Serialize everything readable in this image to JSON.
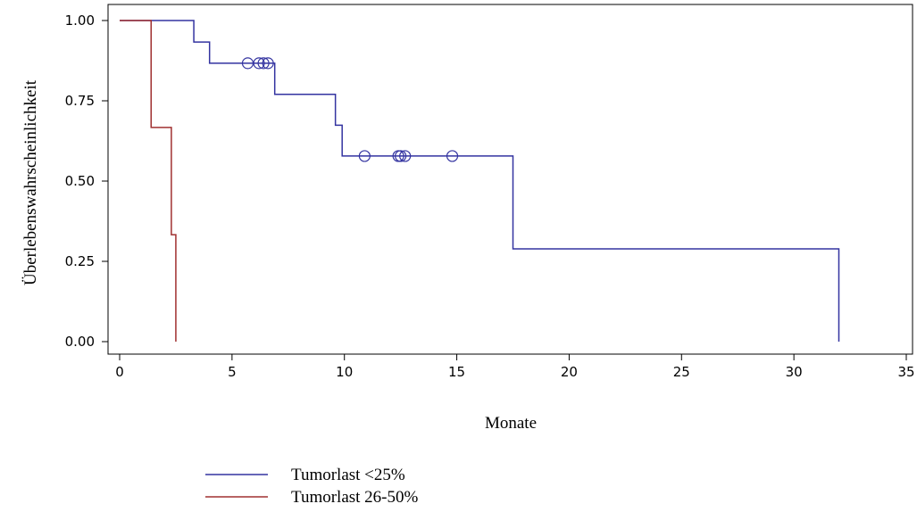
{
  "chart_data": {
    "type": "line",
    "subtype": "kaplan-meier step",
    "title": "",
    "xlabel": "Monate",
    "ylabel": "Überlebenswahrscheinlichkeit",
    "xlim": [
      0,
      35
    ],
    "ylim": [
      0,
      1
    ],
    "x_ticks": [
      "0",
      "5",
      "10",
      "15",
      "20",
      "25",
      "30",
      "35"
    ],
    "y_ticks": [
      "0.00",
      "0.25",
      "0.50",
      "0.75",
      "1.00"
    ],
    "grid": false,
    "legend_position": "bottom-left",
    "series": [
      {
        "name": "Tumorlast <25%",
        "color": "#3333a0",
        "steps": [
          [
            0,
            1.0
          ],
          [
            3.3,
            0.933
          ],
          [
            4.0,
            0.867
          ],
          [
            6.9,
            0.77
          ],
          [
            9.6,
            0.674
          ],
          [
            9.9,
            0.578
          ],
          [
            17.5,
            0.289
          ],
          [
            32.0,
            0.0
          ]
        ],
        "censored_x": [
          5.7,
          6.2,
          6.4,
          6.6,
          10.9,
          12.4,
          12.5,
          12.7,
          14.8
        ],
        "censored_y": [
          0.867,
          0.867,
          0.867,
          0.867,
          0.578,
          0.578,
          0.578,
          0.578,
          0.578
        ]
      },
      {
        "name": "Tumorlast 26-50%",
        "color": "#a03030",
        "steps": [
          [
            0,
            1.0
          ],
          [
            1.4,
            0.667
          ],
          [
            2.3,
            0.333
          ],
          [
            2.5,
            0.0
          ]
        ],
        "censored_x": [],
        "censored_y": []
      }
    ]
  }
}
